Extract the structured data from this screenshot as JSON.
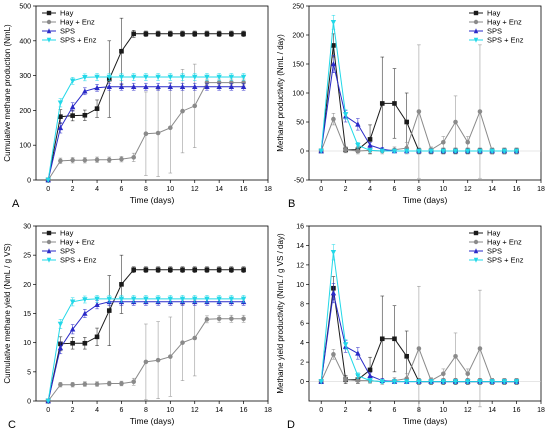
{
  "chart_data": [
    {
      "type": "line",
      "panel_label": "A",
      "xlabel": "Time (days)",
      "ylabel": "Cumulative methane production (NmL)",
      "xlim": [
        -1,
        18
      ],
      "ylim": [
        0,
        500
      ],
      "xticks": [
        0,
        2,
        4,
        6,
        8,
        10,
        12,
        14,
        16,
        18
      ],
      "yticks": [
        0,
        100,
        200,
        300,
        400,
        500
      ],
      "legend": "top-left",
      "series": [
        {
          "name": "Hay",
          "color": "#1a1a1a",
          "marker": "square",
          "x": [
            0,
            1,
            2,
            3,
            4,
            5,
            6,
            7,
            8,
            9,
            10,
            11,
            12,
            13,
            14,
            15,
            16
          ],
          "y": [
            0,
            182,
            185,
            186,
            205,
            290,
            370,
            420,
            420,
            420,
            420,
            420,
            420,
            420,
            420,
            420,
            420
          ],
          "err": [
            0,
            20,
            15,
            15,
            25,
            110,
            95,
            10,
            8,
            8,
            8,
            8,
            8,
            8,
            8,
            8,
            8
          ]
        },
        {
          "name": "Hay + Enz",
          "color": "#8a8a8a",
          "marker": "circle",
          "x": [
            0,
            1,
            2,
            3,
            4,
            5,
            6,
            7,
            8,
            9,
            10,
            11,
            12,
            13,
            14,
            15,
            16
          ],
          "y": [
            0,
            55,
            57,
            57,
            58,
            58,
            60,
            65,
            133,
            135,
            150,
            198,
            213,
            280,
            280,
            280,
            280
          ],
          "err": [
            0,
            8,
            8,
            8,
            8,
            8,
            8,
            12,
            120,
            125,
            130,
            120,
            120,
            10,
            10,
            10,
            10
          ]
        },
        {
          "name": "SPS",
          "color": "#2a2ac8",
          "marker": "triangle",
          "x": [
            0,
            1,
            2,
            3,
            4,
            5,
            6,
            7,
            8,
            9,
            10,
            11,
            12,
            13,
            14,
            15,
            16
          ],
          "y": [
            0,
            150,
            210,
            255,
            265,
            268,
            268,
            268,
            268,
            268,
            268,
            268,
            268,
            268,
            268,
            268,
            268
          ],
          "err": [
            0,
            15,
            12,
            10,
            10,
            10,
            10,
            10,
            10,
            10,
            10,
            10,
            10,
            10,
            10,
            10,
            10
          ]
        },
        {
          "name": "SPS + Enz",
          "color": "#22d8e8",
          "marker": "inv-triangle",
          "x": [
            0,
            1,
            2,
            3,
            4,
            5,
            6,
            7,
            8,
            9,
            10,
            11,
            12,
            13,
            14,
            15,
            16
          ],
          "y": [
            0,
            222,
            285,
            295,
            296,
            296,
            296,
            296,
            296,
            296,
            296,
            296,
            296,
            296,
            296,
            296,
            296
          ],
          "err": [
            0,
            12,
            10,
            10,
            10,
            10,
            10,
            10,
            10,
            10,
            10,
            10,
            10,
            10,
            10,
            10,
            10
          ]
        }
      ]
    },
    {
      "type": "line",
      "panel_label": "B",
      "xlabel": "Time (days)",
      "ylabel": "Methane productivity (NmL / day)",
      "xlim": [
        -1,
        18
      ],
      "ylim": [
        -50,
        250
      ],
      "xticks": [
        0,
        2,
        4,
        6,
        8,
        10,
        12,
        14,
        16,
        18
      ],
      "yticks": [
        -50,
        0,
        50,
        100,
        150,
        200,
        250
      ],
      "legend": "top-right",
      "series": [
        {
          "name": "Hay",
          "color": "#1a1a1a",
          "marker": "square",
          "x": [
            0,
            1,
            2,
            3,
            4,
            5,
            6,
            7,
            8,
            9,
            10,
            11,
            12,
            13,
            14,
            15,
            16
          ],
          "y": [
            0,
            182,
            2,
            2,
            20,
            82,
            82,
            50,
            0,
            0,
            0,
            0,
            0,
            0,
            0,
            0,
            0
          ],
          "err": [
            0,
            20,
            5,
            5,
            25,
            80,
            60,
            50,
            5,
            5,
            5,
            5,
            5,
            5,
            5,
            5,
            5
          ]
        },
        {
          "name": "Hay + Enz",
          "color": "#8a8a8a",
          "marker": "circle",
          "x": [
            0,
            1,
            2,
            3,
            4,
            5,
            6,
            7,
            8,
            9,
            10,
            11,
            12,
            13,
            14,
            15,
            16
          ],
          "y": [
            0,
            55,
            2,
            0,
            1,
            0,
            2,
            5,
            68,
            2,
            15,
            50,
            15,
            68,
            0,
            0,
            0
          ],
          "err": [
            0,
            10,
            5,
            5,
            5,
            5,
            5,
            10,
            115,
            5,
            10,
            45,
            10,
            115,
            5,
            5,
            5
          ]
        },
        {
          "name": "SPS",
          "color": "#2a2ac8",
          "marker": "triangle",
          "x": [
            0,
            1,
            2,
            3,
            4,
            5,
            6,
            7,
            8,
            9,
            10,
            11,
            12,
            13,
            14,
            15,
            16
          ],
          "y": [
            0,
            150,
            60,
            46,
            10,
            3,
            0,
            0,
            0,
            0,
            0,
            0,
            0,
            0,
            0,
            0,
            0
          ],
          "err": [
            0,
            15,
            10,
            10,
            5,
            3,
            3,
            3,
            3,
            3,
            3,
            3,
            3,
            3,
            3,
            3,
            3
          ]
        },
        {
          "name": "SPS + Enz",
          "color": "#22d8e8",
          "marker": "inv-triangle",
          "x": [
            0,
            1,
            2,
            3,
            4,
            5,
            6,
            7,
            8,
            9,
            10,
            11,
            12,
            13,
            14,
            15,
            16
          ],
          "y": [
            0,
            222,
            63,
            10,
            1,
            0,
            0,
            0,
            0,
            0,
            0,
            0,
            0,
            0,
            0,
            0,
            0
          ],
          "err": [
            0,
            12,
            8,
            5,
            3,
            3,
            3,
            3,
            3,
            3,
            3,
            3,
            3,
            3,
            3,
            3,
            3
          ]
        }
      ]
    },
    {
      "type": "line",
      "panel_label": "C",
      "xlabel": "Time (days)",
      "ylabel": "Cumulative methane yield (NmL / g VS)",
      "xlim": [
        -1,
        18
      ],
      "ylim": [
        0,
        30
      ],
      "xticks": [
        0,
        2,
        4,
        6,
        8,
        10,
        12,
        14,
        16,
        18
      ],
      "yticks": [
        0,
        5,
        10,
        15,
        20,
        25,
        30
      ],
      "legend": "top-left",
      "series": [
        {
          "name": "Hay",
          "color": "#1a1a1a",
          "marker": "square",
          "x": [
            0,
            1,
            2,
            3,
            4,
            5,
            6,
            7,
            8,
            9,
            10,
            11,
            12,
            13,
            14,
            15,
            16
          ],
          "y": [
            0,
            9.8,
            9.9,
            9.9,
            11,
            15.5,
            20,
            22.5,
            22.5,
            22.5,
            22.5,
            22.5,
            22.5,
            22.5,
            22.5,
            22.5,
            22.5
          ],
          "err": [
            0,
            1.2,
            1,
            1,
            1.5,
            6,
            5,
            0.5,
            0.5,
            0.5,
            0.5,
            0.5,
            0.5,
            0.5,
            0.5,
            0.5,
            0.5
          ]
        },
        {
          "name": "Hay + Enz",
          "color": "#8a8a8a",
          "marker": "circle",
          "x": [
            0,
            1,
            2,
            3,
            4,
            5,
            6,
            7,
            8,
            9,
            10,
            11,
            12,
            13,
            14,
            15,
            16
          ],
          "y": [
            0,
            2.8,
            2.8,
            2.9,
            2.9,
            3,
            3,
            3.3,
            6.7,
            7,
            7.6,
            10,
            10.8,
            14,
            14.1,
            14.1,
            14.1
          ],
          "err": [
            0,
            0.4,
            0.4,
            0.4,
            0.4,
            0.4,
            0.4,
            0.6,
            6.5,
            6.6,
            6.8,
            6.5,
            6.5,
            0.6,
            0.6,
            0.6,
            0.6
          ]
        },
        {
          "name": "SPS",
          "color": "#2a2ac8",
          "marker": "triangle",
          "x": [
            0,
            1,
            2,
            3,
            4,
            5,
            6,
            7,
            8,
            9,
            10,
            11,
            12,
            13,
            14,
            15,
            16
          ],
          "y": [
            0,
            9.1,
            12.3,
            15,
            16.5,
            17,
            17,
            17,
            17,
            17,
            17,
            17,
            17,
            17,
            17,
            17,
            17
          ],
          "err": [
            0,
            1,
            0.8,
            0.7,
            0.7,
            0.6,
            0.6,
            0.6,
            0.6,
            0.6,
            0.6,
            0.6,
            0.6,
            0.6,
            0.6,
            0.6,
            0.6
          ]
        },
        {
          "name": "SPS + Enz",
          "color": "#22d8e8",
          "marker": "inv-triangle",
          "x": [
            0,
            1,
            2,
            3,
            4,
            5,
            6,
            7,
            8,
            9,
            10,
            11,
            12,
            13,
            14,
            15,
            16
          ],
          "y": [
            0,
            13.2,
            17,
            17.4,
            17.5,
            17.5,
            17.5,
            17.5,
            17.5,
            17.5,
            17.5,
            17.5,
            17.5,
            17.5,
            17.5,
            17.5,
            17.5
          ],
          "err": [
            0,
            0.8,
            0.7,
            0.6,
            0.6,
            0.6,
            0.6,
            0.6,
            0.6,
            0.6,
            0.6,
            0.6,
            0.6,
            0.6,
            0.6,
            0.6,
            0.6
          ]
        }
      ]
    },
    {
      "type": "line",
      "panel_label": "D",
      "xlabel": "Time (days)",
      "ylabel": "Methane yield productivity (NmL / g VS / day)",
      "xlim": [
        -1,
        18
      ],
      "ylim": [
        -2,
        16
      ],
      "xticks": [
        0,
        2,
        4,
        6,
        8,
        10,
        12,
        14,
        16,
        18
      ],
      "yticks": [
        0,
        2,
        4,
        6,
        8,
        10,
        12,
        14,
        16
      ],
      "legend": "top-right",
      "series": [
        {
          "name": "Hay",
          "color": "#1a1a1a",
          "marker": "square",
          "x": [
            0,
            1,
            2,
            3,
            4,
            5,
            6,
            7,
            8,
            9,
            10,
            11,
            12,
            13,
            14,
            15,
            16
          ],
          "y": [
            0,
            9.6,
            0.2,
            0.2,
            1.2,
            4.4,
            4.4,
            2.6,
            0,
            0,
            0,
            0,
            0,
            0,
            0,
            0,
            0
          ],
          "err": [
            0,
            1.2,
            0.4,
            0.4,
            1.3,
            4.4,
            3.4,
            2.6,
            0.3,
            0.3,
            0.3,
            0.3,
            0.3,
            0.3,
            0.3,
            0.3,
            0.3
          ]
        },
        {
          "name": "Hay + Enz",
          "color": "#8a8a8a",
          "marker": "circle",
          "x": [
            0,
            1,
            2,
            3,
            4,
            5,
            6,
            7,
            8,
            9,
            10,
            11,
            12,
            13,
            14,
            15,
            16
          ],
          "y": [
            0,
            2.8,
            0.2,
            0.1,
            0.1,
            0,
            0.1,
            0.3,
            3.4,
            0.1,
            0.8,
            2.6,
            0.8,
            3.4,
            0,
            0,
            0
          ],
          "err": [
            0,
            0.5,
            0.3,
            0.3,
            0.3,
            0.3,
            0.3,
            0.5,
            6.4,
            0.3,
            0.5,
            2.4,
            0.5,
            6,
            0.3,
            0.3,
            0.3
          ]
        },
        {
          "name": "SPS",
          "color": "#2a2ac8",
          "marker": "triangle",
          "x": [
            0,
            1,
            2,
            3,
            4,
            5,
            6,
            7,
            8,
            9,
            10,
            11,
            12,
            13,
            14,
            15,
            16
          ],
          "y": [
            0,
            9.1,
            3.6,
            2.9,
            0.6,
            0.1,
            0,
            0,
            0,
            0,
            0,
            0,
            0,
            0,
            0,
            0,
            0
          ],
          "err": [
            0,
            1,
            0.6,
            0.6,
            0.3,
            0.2,
            0.2,
            0.2,
            0.2,
            0.2,
            0.2,
            0.2,
            0.2,
            0.2,
            0.2,
            0.2,
            0.2
          ]
        },
        {
          "name": "SPS + Enz",
          "color": "#22d8e8",
          "marker": "inv-triangle",
          "x": [
            0,
            1,
            2,
            3,
            4,
            5,
            6,
            7,
            8,
            9,
            10,
            11,
            12,
            13,
            14,
            15,
            16
          ],
          "y": [
            0,
            13.3,
            3.8,
            0.6,
            0.1,
            0,
            0,
            0,
            0,
            0,
            0,
            0,
            0,
            0,
            0,
            0,
            0
          ],
          "err": [
            0,
            0.8,
            0.5,
            0.3,
            0.2,
            0.2,
            0.2,
            0.2,
            0.2,
            0.2,
            0.2,
            0.2,
            0.2,
            0.2,
            0.2,
            0.2,
            0.2
          ]
        }
      ]
    }
  ]
}
